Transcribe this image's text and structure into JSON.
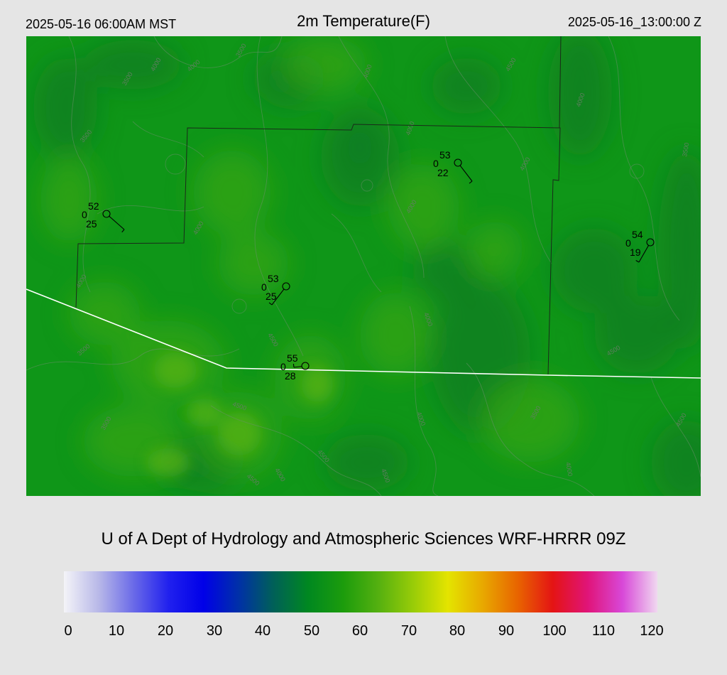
{
  "header": {
    "valid_local": "2025-05-16 06:00AM MST",
    "title": "2m Temperature(F)",
    "valid_utc": "2025-05-16_13:00:00 Z"
  },
  "credit": "U of A Dept of Hydrology and Atmospheric Sciences WRF-HRRR 09Z",
  "colorbar": {
    "labels": [
      "0",
      "10",
      "20",
      "30",
      "40",
      "50",
      "60",
      "70",
      "80",
      "90",
      "100",
      "110",
      "120"
    ],
    "stops": [
      "#f4f4f8",
      "#b8b8e8",
      "#6a6ae8",
      "#2020ee",
      "#0000e8",
      "#0030a8",
      "#006058",
      "#008820",
      "#1c9c0c",
      "#54b010",
      "#98cc08",
      "#e4e400",
      "#e8a800",
      "#e86400",
      "#e41414",
      "#e01478",
      "#d848d8",
      "#f0d8f0"
    ]
  },
  "map": {
    "base_colors": {
      "dark": "#0c7c22",
      "mid": "#0f9618",
      "light": "#3ca818",
      "pale": "#64b81a"
    },
    "contour_labels": [
      "3500",
      "4000",
      "4000",
      "3500",
      "3500",
      "4000",
      "4000",
      "4500",
      "4000",
      "3500",
      "4000",
      "4000",
      "4500",
      "4500",
      "4000",
      "4000",
      "3500",
      "3500",
      "4500",
      "4000",
      "4500",
      "4000",
      "4500",
      "4000",
      "4500",
      "3500",
      "4500",
      "4000"
    ],
    "stations": [
      {
        "name": "station-west",
        "temp": "52",
        "dew": "25",
        "cloud": "0"
      },
      {
        "name": "station-north",
        "temp": "53",
        "dew": "22",
        "cloud": "0"
      },
      {
        "name": "station-east",
        "temp": "54",
        "dew": "19",
        "cloud": "0"
      },
      {
        "name": "station-central",
        "temp": "53",
        "dew": "25",
        "cloud": "0"
      },
      {
        "name": "station-south",
        "temp": "55",
        "dew": "28",
        "cloud": "0"
      }
    ]
  }
}
